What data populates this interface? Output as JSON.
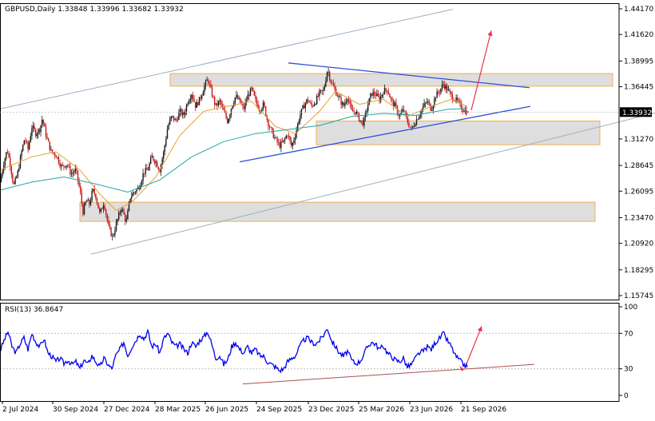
{
  "chart_data": {
    "type": "candlestick",
    "symbol": "GBPUSD",
    "timeframe": "Daily",
    "ohlc": {
      "open": "1.33848",
      "high": "1.33996",
      "low": "1.33682",
      "close": "1.33932"
    },
    "header_text": "GBPUSD,Daily  1.33848 1.33996 1.33682 1.33932",
    "current_price": 1.33932,
    "current_price_label": "1.33932",
    "price_axis": {
      "ticks": [
        "1.44170",
        "1.41620",
        "1.38995",
        "1.36445",
        "1.33932",
        "1.31270",
        "1.28645",
        "1.26095",
        "1.23470",
        "1.20920",
        "1.18295",
        "1.15745"
      ],
      "ylim": [
        1.1525,
        1.4467
      ]
    },
    "time_axis": {
      "labels": [
        "2 Jul 2024",
        "30 Sep 2024",
        "27 Dec 2024",
        "28 Mar 2025",
        "26 Jun 2025",
        "24 Sep 2025",
        "23 Dec 2025",
        "25 Mar 2026",
        "23 Jun 2026",
        "21 Sep 2026"
      ]
    },
    "price_path": [
      [
        0,
        1.27
      ],
      [
        5,
        1.29
      ],
      [
        9,
        1.302
      ],
      [
        13,
        1.287
      ],
      [
        17,
        1.266
      ],
      [
        22,
        1.278
      ],
      [
        27,
        1.3
      ],
      [
        31,
        1.314
      ],
      [
        35,
        1.302
      ],
      [
        40,
        1.325
      ],
      [
        45,
        1.318
      ],
      [
        50,
        1.323
      ],
      [
        53,
        1.333
      ],
      [
        58,
        1.315
      ],
      [
        64,
        1.3
      ],
      [
        70,
        1.297
      ],
      [
        77,
        1.285
      ],
      [
        84,
        1.288
      ],
      [
        89,
        1.278
      ],
      [
        95,
        1.282
      ],
      [
        100,
        1.262
      ],
      [
        104,
        1.24
      ],
      [
        108,
        1.252
      ],
      [
        112,
        1.248
      ],
      [
        116,
        1.262
      ],
      [
        120,
        1.256
      ],
      [
        125,
        1.238
      ],
      [
        130,
        1.25
      ],
      [
        136,
        1.225
      ],
      [
        141,
        1.215
      ],
      [
        146,
        1.23
      ],
      [
        152,
        1.245
      ],
      [
        158,
        1.23
      ],
      [
        163,
        1.255
      ],
      [
        168,
        1.26
      ],
      [
        174,
        1.265
      ],
      [
        180,
        1.28
      ],
      [
        185,
        1.282
      ],
      [
        190,
        1.295
      ],
      [
        195,
        1.29
      ],
      [
        200,
        1.282
      ],
      [
        205,
        1.3
      ],
      [
        210,
        1.325
      ],
      [
        215,
        1.335
      ],
      [
        220,
        1.33
      ],
      [
        225,
        1.34
      ],
      [
        230,
        1.336
      ],
      [
        235,
        1.35
      ],
      [
        240,
        1.358
      ],
      [
        245,
        1.345
      ],
      [
        250,
        1.352
      ],
      [
        256,
        1.365
      ],
      [
        260,
        1.372
      ],
      [
        265,
        1.358
      ],
      [
        270,
        1.345
      ],
      [
        275,
        1.35
      ],
      [
        280,
        1.34
      ],
      [
        285,
        1.33
      ],
      [
        290,
        1.345
      ],
      [
        295,
        1.355
      ],
      [
        300,
        1.35
      ],
      [
        305,
        1.342
      ],
      [
        310,
        1.355
      ],
      [
        315,
        1.362
      ],
      [
        320,
        1.35
      ],
      [
        325,
        1.342
      ],
      [
        330,
        1.347
      ],
      [
        335,
        1.33
      ],
      [
        340,
        1.32
      ],
      [
        345,
        1.312
      ],
      [
        350,
        1.306
      ],
      [
        355,
        1.31
      ],
      [
        360,
        1.318
      ],
      [
        365,
        1.305
      ],
      [
        370,
        1.318
      ],
      [
        375,
        1.335
      ],
      [
        380,
        1.345
      ],
      [
        385,
        1.352
      ],
      [
        390,
        1.345
      ],
      [
        395,
        1.35
      ],
      [
        400,
        1.358
      ],
      [
        405,
        1.36
      ],
      [
        410,
        1.382
      ],
      [
        415,
        1.368
      ],
      [
        420,
        1.36
      ],
      [
        425,
        1.352
      ],
      [
        430,
        1.345
      ],
      [
        435,
        1.355
      ],
      [
        440,
        1.34
      ],
      [
        445,
        1.34
      ],
      [
        450,
        1.332
      ],
      [
        455,
        1.328
      ],
      [
        460,
        1.345
      ],
      [
        465,
        1.358
      ],
      [
        470,
        1.357
      ],
      [
        475,
        1.352
      ],
      [
        480,
        1.36
      ],
      [
        485,
        1.362
      ],
      [
        490,
        1.35
      ],
      [
        495,
        1.345
      ],
      [
        500,
        1.335
      ],
      [
        505,
        1.342
      ],
      [
        510,
        1.33
      ],
      [
        515,
        1.322
      ],
      [
        520,
        1.33
      ],
      [
        525,
        1.337
      ],
      [
        530,
        1.345
      ],
      [
        535,
        1.35
      ],
      [
        540,
        1.342
      ],
      [
        545,
        1.355
      ],
      [
        550,
        1.36
      ],
      [
        555,
        1.367
      ],
      [
        560,
        1.362
      ],
      [
        565,
        1.355
      ],
      [
        570,
        1.352
      ],
      [
        575,
        1.347
      ],
      [
        580,
        1.342
      ],
      [
        585,
        1.339
      ]
    ],
    "moving_averages": [
      {
        "color": "#e8a030",
        "points": [
          [
            0,
            1.282
          ],
          [
            40,
            1.295
          ],
          [
            70,
            1.3
          ],
          [
            100,
            1.282
          ],
          [
            125,
            1.258
          ],
          [
            145,
            1.242
          ],
          [
            165,
            1.25
          ],
          [
            195,
            1.275
          ],
          [
            225,
            1.316
          ],
          [
            255,
            1.34
          ],
          [
            285,
            1.345
          ],
          [
            315,
            1.35
          ],
          [
            345,
            1.325
          ],
          [
            370,
            1.318
          ],
          [
            400,
            1.34
          ],
          [
            420,
            1.36
          ],
          [
            450,
            1.347
          ],
          [
            480,
            1.352
          ],
          [
            510,
            1.335
          ],
          [
            540,
            1.345
          ],
          [
            565,
            1.352
          ],
          [
            585,
            1.345
          ]
        ]
      },
      {
        "color": "#20a8a0",
        "points": [
          [
            0,
            1.262
          ],
          [
            40,
            1.27
          ],
          [
            80,
            1.275
          ],
          [
            120,
            1.268
          ],
          [
            160,
            1.26
          ],
          [
            200,
            1.272
          ],
          [
            240,
            1.295
          ],
          [
            280,
            1.31
          ],
          [
            320,
            1.318
          ],
          [
            360,
            1.322
          ],
          [
            400,
            1.326
          ],
          [
            440,
            1.335
          ],
          [
            480,
            1.338
          ],
          [
            520,
            1.336
          ],
          [
            560,
            1.342
          ],
          [
            585,
            1.343
          ]
        ]
      }
    ],
    "zones": [
      {
        "x": [
          213,
          767
        ],
        "y": [
          1.3775,
          1.365
        ]
      },
      {
        "x": [
          396,
          751
        ],
        "y": [
          1.3305,
          1.307
        ]
      },
      {
        "x": [
          100,
          745
        ],
        "y": [
          1.25,
          1.231
        ]
      }
    ],
    "channel_lines": [
      {
        "color": "#9aaec4",
        "from": [
          0,
          1.3425
        ],
        "to": [
          567,
          1.4412
        ]
      },
      {
        "color": "#9aaec4",
        "from": [
          114,
          1.1985
        ],
        "to": [
          820,
          1.3385
        ]
      },
      {
        "color": "#2a4fd8",
        "from": [
          361,
          1.388
        ],
        "to": [
          663,
          1.3635
        ]
      },
      {
        "color": "#2a4fd8",
        "from": [
          300,
          1.29
        ],
        "to": [
          664,
          1.345
        ]
      }
    ],
    "projection": {
      "color": "#e8344a",
      "from": [
        590,
        1.3412
      ],
      "to": [
        615,
        1.42
      ]
    },
    "rsi": {
      "label": "RSI(13) 36.8647",
      "ticks": [
        "100",
        "70",
        "30",
        "0"
      ],
      "ylim": [
        0,
        100
      ],
      "levels": [
        70,
        30
      ],
      "color": "#0000ee",
      "path": [
        [
          0,
          50
        ],
        [
          5,
          62
        ],
        [
          10,
          72
        ],
        [
          15,
          55
        ],
        [
          20,
          48
        ],
        [
          25,
          58
        ],
        [
          30,
          65
        ],
        [
          35,
          52
        ],
        [
          40,
          70
        ],
        [
          45,
          60
        ],
        [
          50,
          55
        ],
        [
          55,
          64
        ],
        [
          60,
          48
        ],
        [
          65,
          44
        ],
        [
          70,
          38
        ],
        [
          75,
          42
        ],
        [
          80,
          36
        ],
        [
          85,
          40
        ],
        [
          90,
          35
        ],
        [
          95,
          38
        ],
        [
          100,
          30
        ],
        [
          105,
          40
        ],
        [
          110,
          35
        ],
        [
          115,
          45
        ],
        [
          120,
          38
        ],
        [
          125,
          32
        ],
        [
          130,
          42
        ],
        [
          135,
          35
        ],
        [
          140,
          30
        ],
        [
          145,
          45
        ],
        [
          150,
          52
        ],
        [
          155,
          60
        ],
        [
          160,
          45
        ],
        [
          165,
          55
        ],
        [
          170,
          62
        ],
        [
          175,
          70
        ],
        [
          180,
          64
        ],
        [
          185,
          72
        ],
        [
          190,
          55
        ],
        [
          195,
          58
        ],
        [
          200,
          48
        ],
        [
          205,
          64
        ],
        [
          210,
          70
        ],
        [
          215,
          60
        ],
        [
          220,
          55
        ],
        [
          225,
          58
        ],
        [
          230,
          52
        ],
        [
          235,
          48
        ],
        [
          240,
          60
        ],
        [
          245,
          55
        ],
        [
          250,
          62
        ],
        [
          255,
          66
        ],
        [
          260,
          72
        ],
        [
          265,
          58
        ],
        [
          270,
          42
        ],
        [
          275,
          45
        ],
        [
          280,
          35
        ],
        [
          285,
          40
        ],
        [
          290,
          55
        ],
        [
          295,
          60
        ],
        [
          300,
          52
        ],
        [
          305,
          48
        ],
        [
          310,
          55
        ],
        [
          315,
          48
        ],
        [
          320,
          52
        ],
        [
          325,
          45
        ],
        [
          330,
          44
        ],
        [
          335,
          38
        ],
        [
          340,
          35
        ],
        [
          345,
          32
        ],
        [
          350,
          28
        ],
        [
          355,
          30
        ],
        [
          360,
          38
        ],
        [
          365,
          42
        ],
        [
          370,
          45
        ],
        [
          375,
          55
        ],
        [
          380,
          62
        ],
        [
          385,
          65
        ],
        [
          390,
          60
        ],
        [
          395,
          58
        ],
        [
          400,
          62
        ],
        [
          405,
          68
        ],
        [
          410,
          76
        ],
        [
          415,
          62
        ],
        [
          420,
          55
        ],
        [
          425,
          48
        ],
        [
          430,
          44
        ],
        [
          435,
          50
        ],
        [
          440,
          40
        ],
        [
          445,
          36
        ],
        [
          450,
          38
        ],
        [
          455,
          45
        ],
        [
          460,
          55
        ],
        [
          465,
          60
        ],
        [
          470,
          58
        ],
        [
          475,
          52
        ],
        [
          480,
          56
        ],
        [
          485,
          48
        ],
        [
          490,
          44
        ],
        [
          495,
          40
        ],
        [
          500,
          38
        ],
        [
          505,
          42
        ],
        [
          510,
          32
        ],
        [
          515,
          35
        ],
        [
          520,
          42
        ],
        [
          525,
          48
        ],
        [
          530,
          50
        ],
        [
          535,
          55
        ],
        [
          540,
          52
        ],
        [
          545,
          60
        ],
        [
          550,
          64
        ],
        [
          555,
          70
        ],
        [
          560,
          62
        ],
        [
          565,
          55
        ],
        [
          570,
          45
        ],
        [
          575,
          40
        ],
        [
          580,
          35
        ],
        [
          585,
          32
        ]
      ],
      "trend_line": {
        "color": "#b05050",
        "from": [
          304,
          13
        ],
        "to": [
          669,
          35
        ]
      },
      "projection": {
        "color": "#e8344a",
        "from": [
          582,
          31
        ],
        "to": [
          603,
          78
        ]
      }
    }
  }
}
